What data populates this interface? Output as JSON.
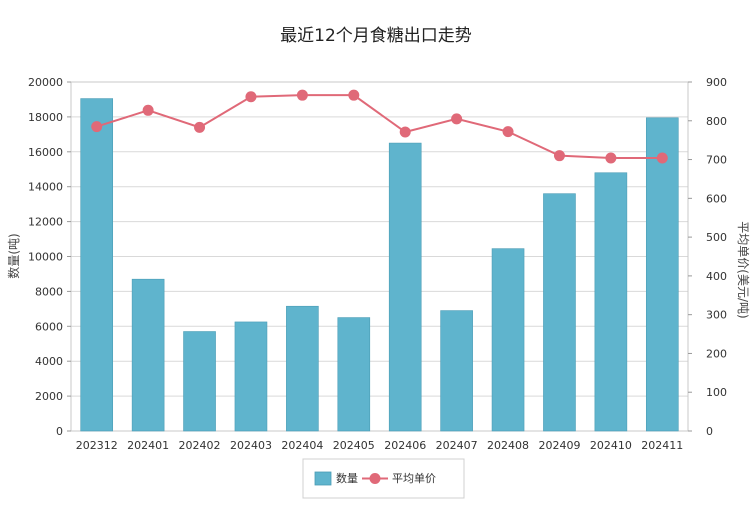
{
  "chart_data": {
    "type": "bar",
    "title": "最近12个月食糖出口走势",
    "categories": [
      "202312",
      "202401",
      "202402",
      "202403",
      "202404",
      "202405",
      "202406",
      "202407",
      "202408",
      "202409",
      "202410",
      "202411"
    ],
    "series": [
      {
        "name": "数量",
        "type": "bar",
        "axis": "left",
        "color": "#5fb4cd",
        "values": [
          19050,
          8700,
          5700,
          6250,
          7150,
          6500,
          16500,
          6900,
          10450,
          13600,
          14800,
          17950
        ]
      },
      {
        "name": "平均单价",
        "type": "line",
        "axis": "right",
        "color": "#e06978",
        "values": [
          785,
          827,
          783,
          862,
          866,
          866,
          771,
          805,
          772,
          710,
          704,
          704
        ]
      }
    ],
    "ylabel": "数量(吨)",
    "y2label": "平均单价(美元/吨)",
    "ylim": [
      0,
      20000
    ],
    "yticks": [
      0,
      2000,
      4000,
      6000,
      8000,
      10000,
      12000,
      14000,
      16000,
      18000,
      20000
    ],
    "y2lim": [
      0,
      900
    ],
    "y2ticks": [
      0,
      100,
      200,
      300,
      400,
      500,
      600,
      700,
      800,
      900
    ],
    "grid": true,
    "legend_position": "bottom"
  }
}
